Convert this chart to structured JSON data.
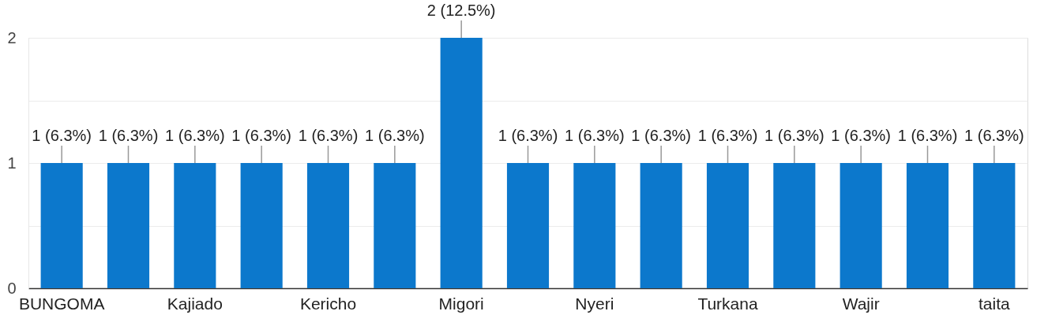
{
  "chart_data": {
    "type": "bar",
    "categories": [
      "BUNGOMA",
      null,
      "Kajiado",
      null,
      "Kericho",
      null,
      "Migori",
      null,
      "Nyeri",
      null,
      "Turkana",
      null,
      "Wajir",
      null,
      "taita"
    ],
    "values": [
      1,
      1,
      1,
      1,
      1,
      1,
      2,
      1,
      1,
      1,
      1,
      1,
      1,
      1,
      1
    ],
    "value_labels": [
      "1 (6.3%)",
      "1 (6.3%)",
      "1 (6.3%)",
      "1 (6.3%)",
      "1 (6.3%)",
      "1 (6.3%)",
      "2 (12.5%)",
      "1 (6.3%)",
      "1 (6.3%)",
      "1 (6.3%)",
      "1 (6.3%)",
      "1 (6.3%)",
      "1 (6.3%)",
      "1 (6.3%)",
      "1 (6.3%)"
    ],
    "color": "#0c78cc",
    "ylim": [
      0,
      2
    ],
    "yticks": [
      0,
      {
        "value": 0.5,
        "label": null
      },
      1,
      {
        "value": 1.5,
        "label": null
      },
      2
    ],
    "grid": "y"
  }
}
